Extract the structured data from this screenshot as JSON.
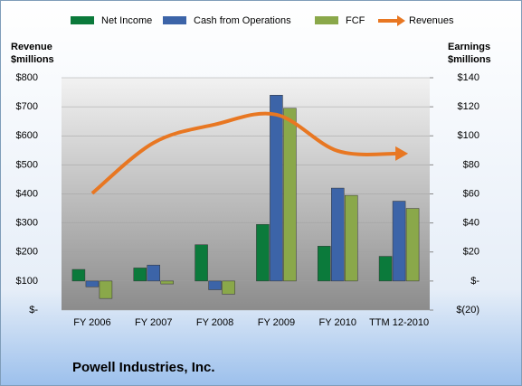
{
  "chart_data": {
    "type": "bar",
    "title": "Powell Industries, Inc.",
    "ylabel": [
      "Revenue",
      "$millions"
    ],
    "y2label": [
      "Earnings",
      "$millions"
    ],
    "categories": [
      "FY 2006",
      "FY 2007",
      "FY 2008",
      "FY 2009",
      "FY 2010",
      "TTM 12-2010"
    ],
    "series": [
      {
        "name": "Net Income",
        "color": "#0b7a3b",
        "axis": "y2",
        "values": [
          8,
          9,
          25,
          39,
          24,
          17
        ]
      },
      {
        "name": "Cash from Operations",
        "color": "#3c64a8",
        "axis": "y2",
        "values": [
          -4,
          11,
          -6,
          128,
          64,
          55
        ]
      },
      {
        "name": "FCF",
        "color": "#8aa84a",
        "axis": "y2",
        "values": [
          -12,
          -2,
          -9,
          119,
          59,
          50
        ]
      },
      {
        "name": "Revenues",
        "color": "#e87722",
        "type": "line",
        "values": [
          402,
          576,
          639,
          673,
          548,
          539
        ]
      }
    ],
    "ylim": [
      0,
      800
    ],
    "yticks": [
      {
        "value": 0,
        "label": "$-"
      },
      {
        "value": 100,
        "label": "$100"
      },
      {
        "value": 200,
        "label": "$200"
      },
      {
        "value": 300,
        "label": "$300"
      },
      {
        "value": 400,
        "label": "$400"
      },
      {
        "value": 500,
        "label": "$500"
      },
      {
        "value": 600,
        "label": "$600"
      },
      {
        "value": 700,
        "label": "$700"
      },
      {
        "value": 800,
        "label": "$800"
      }
    ],
    "y2lim": [
      -20,
      140
    ],
    "y2ticks": [
      {
        "value": -20,
        "label": "$(20)"
      },
      {
        "value": 0,
        "label": "$-"
      },
      {
        "value": 20,
        "label": "$20"
      },
      {
        "value": 40,
        "label": "$40"
      },
      {
        "value": 60,
        "label": "$60"
      },
      {
        "value": 80,
        "label": "$80"
      },
      {
        "value": 100,
        "label": "$100"
      },
      {
        "value": 120,
        "label": "$120"
      },
      {
        "value": 140,
        "label": "$140"
      }
    ],
    "grid": true
  }
}
